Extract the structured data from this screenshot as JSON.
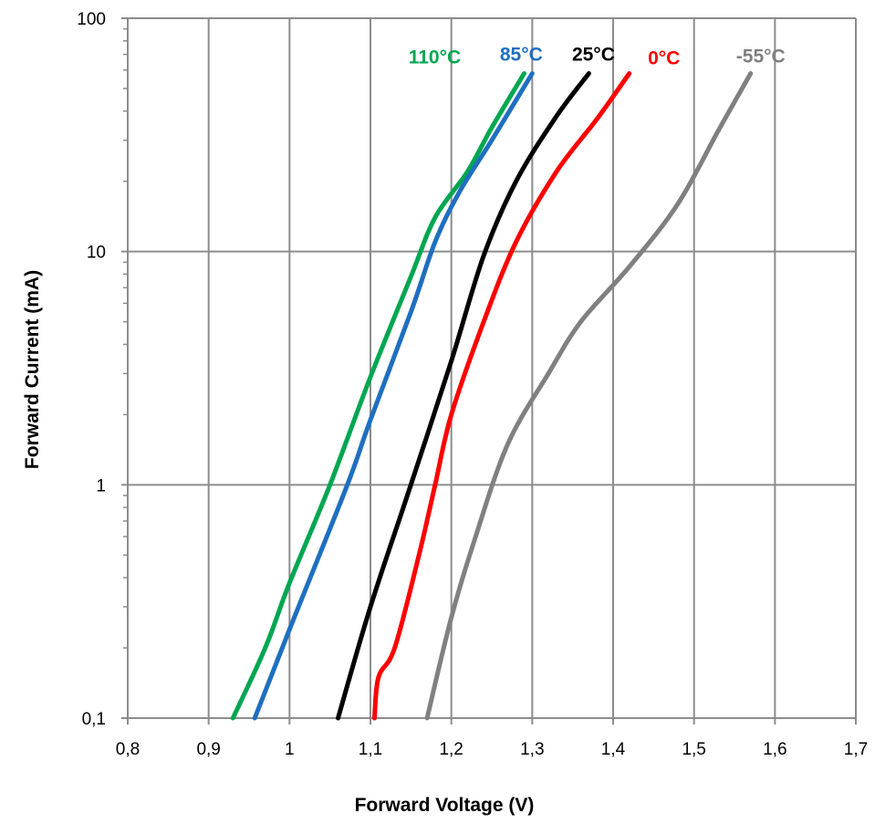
{
  "chart_data": {
    "type": "line",
    "title": "",
    "xlabel": "Forward Voltage (V)",
    "ylabel": "Forward Current (mA)",
    "x_scale": "linear",
    "y_scale": "log",
    "xlim": [
      0.8,
      1.7
    ],
    "ylim": [
      0.1,
      100
    ],
    "grid": true,
    "legend": "inline labels at top of each curve",
    "x_ticks": [
      {
        "value": 0.8,
        "label": "0,8"
      },
      {
        "value": 0.9,
        "label": "0,9"
      },
      {
        "value": 1.0,
        "label": "1"
      },
      {
        "value": 1.1,
        "label": "1,1"
      },
      {
        "value": 1.2,
        "label": "1,2"
      },
      {
        "value": 1.3,
        "label": "1,3"
      },
      {
        "value": 1.4,
        "label": "1,4"
      },
      {
        "value": 1.5,
        "label": "1,5"
      },
      {
        "value": 1.6,
        "label": "1,6"
      },
      {
        "value": 1.7,
        "label": "1,7"
      }
    ],
    "y_ticks": [
      {
        "value": 0.1,
        "label": "0,1"
      },
      {
        "value": 1,
        "label": "1"
      },
      {
        "value": 10,
        "label": "10"
      },
      {
        "value": 100,
        "label": "100"
      }
    ],
    "series": [
      {
        "name": "110°C",
        "color": "#00a651",
        "points": [
          [
            0.93,
            0.1
          ],
          [
            0.97,
            0.2
          ],
          [
            1.0,
            0.38
          ],
          [
            1.05,
            1.0
          ],
          [
            1.1,
            2.9
          ],
          [
            1.15,
            7.8
          ],
          [
            1.18,
            14
          ],
          [
            1.22,
            22
          ],
          [
            1.25,
            34
          ],
          [
            1.29,
            58
          ]
        ]
      },
      {
        "name": "85°C",
        "color": "#1f6fc0",
        "points": [
          [
            0.957,
            0.1
          ],
          [
            1.0,
            0.24
          ],
          [
            1.07,
            0.97
          ],
          [
            1.1,
            1.9
          ],
          [
            1.15,
            5.5
          ],
          [
            1.18,
            11
          ],
          [
            1.21,
            18
          ],
          [
            1.25,
            30
          ],
          [
            1.3,
            58
          ]
        ]
      },
      {
        "name": "25°C",
        "color": "#000000",
        "points": [
          [
            1.06,
            0.1
          ],
          [
            1.1,
            0.3
          ],
          [
            1.15,
            1.0
          ],
          [
            1.2,
            3.4
          ],
          [
            1.24,
            9.6
          ],
          [
            1.28,
            20
          ],
          [
            1.33,
            38
          ],
          [
            1.37,
            58
          ]
        ]
      },
      {
        "name": "0°C",
        "color": "#ff0000",
        "points": [
          [
            1.105,
            0.1
          ],
          [
            1.11,
            0.15
          ],
          [
            1.13,
            0.2
          ],
          [
            1.16,
            0.5
          ],
          [
            1.18,
            1.0
          ],
          [
            1.2,
            2.0
          ],
          [
            1.24,
            5.0
          ],
          [
            1.28,
            11
          ],
          [
            1.33,
            22
          ],
          [
            1.38,
            37
          ],
          [
            1.42,
            58
          ]
        ]
      },
      {
        "name": "-55°C",
        "color": "#808080",
        "points": [
          [
            1.17,
            0.1
          ],
          [
            1.2,
            0.27
          ],
          [
            1.23,
            0.6
          ],
          [
            1.27,
            1.5
          ],
          [
            1.32,
            3.0
          ],
          [
            1.36,
            5.0
          ],
          [
            1.42,
            8.6
          ],
          [
            1.48,
            16
          ],
          [
            1.53,
            33
          ],
          [
            1.57,
            58
          ]
        ]
      }
    ]
  }
}
